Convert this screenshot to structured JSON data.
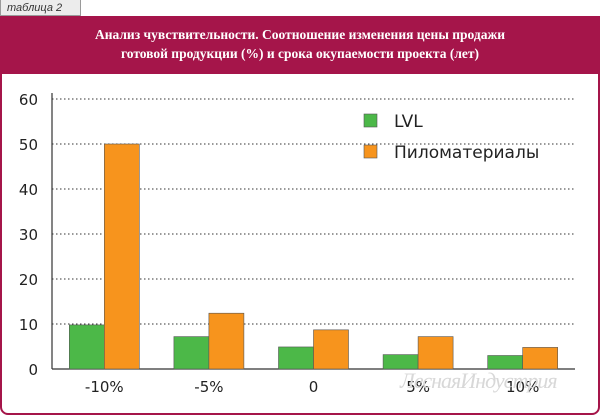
{
  "tag_label": "таблица 2",
  "title_line1": "Анализ чувствительности. Соотношение изменения цены продажи",
  "title_line2": "готовой продукции (%) и срока окупаемости проекта (лет)",
  "watermark": "ЛеснаяИндустрия",
  "colors": {
    "accent": "#a5154a",
    "lvl": "#4cb848",
    "lumber": "#f7941d"
  },
  "chart_data": {
    "type": "bar",
    "categories": [
      "-10%",
      "-5%",
      "0",
      "5%",
      "10%"
    ],
    "series": [
      {
        "name": "LVL",
        "values": [
          9.8,
          7.2,
          4.9,
          3.2,
          3.0
        ]
      },
      {
        "name": "Пиломатериалы",
        "values": [
          50,
          12.4,
          8.7,
          7.2,
          4.8
        ]
      }
    ],
    "ylim": [
      0,
      60
    ],
    "yticks": [
      0,
      10,
      20,
      30,
      40,
      50,
      60
    ],
    "grid": true,
    "legend_position": "top-right"
  }
}
